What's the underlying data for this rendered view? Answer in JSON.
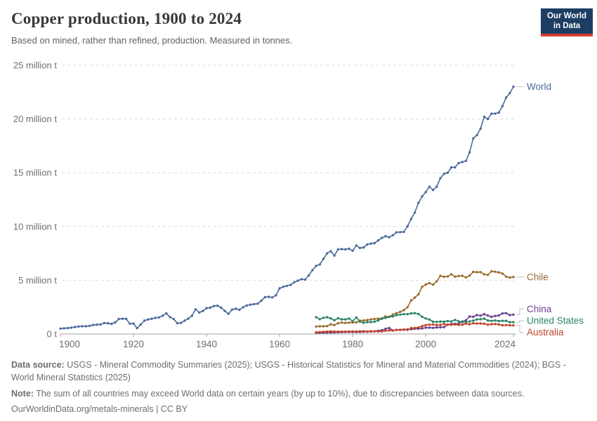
{
  "header": {
    "title": "Copper production, 1900 to 2024",
    "subtitle": "Based on mined, rather than refined, production. Measured in tonnes."
  },
  "logo": {
    "line1": "Our World",
    "line2": "in Data",
    "bg_color": "#1d3d63",
    "stripe_color": "#d53e32"
  },
  "footer": {
    "source_label": "Data source:",
    "source_text": " USGS - Mineral Commodity Summaries (2025); USGS - Historical Statistics for Mineral and Material Commodities (2024); BGS - World Mineral Statistics (2025)",
    "note_label": "Note:",
    "note_text": " The sum of all countries may exceed World data on certain years (by up to 10%), due to discrepancies between data sources.",
    "url_text": "OurWorldinData.org/metals-minerals | CC BY"
  },
  "chart_data": {
    "type": "line",
    "title": "Copper production, 1900 to 2024",
    "xlabel": "",
    "ylabel": "",
    "unit": "tonnes",
    "unit_values": "million tonnes",
    "grid": true,
    "legend_position": "right-end-labels",
    "xlim": [
      1900,
      2024
    ],
    "ylim_million_t": [
      0,
      25
    ],
    "x_ticks": [
      1900,
      1920,
      1940,
      1960,
      1980,
      2000,
      2024
    ],
    "y_ticks_million_t": [
      0,
      5,
      10,
      15,
      20,
      25
    ],
    "y_tick_labels": [
      "0 t",
      "5 million t",
      "10 million t",
      "15 million t",
      "20 million t",
      "25 million t"
    ],
    "axis_color": "#a3a3a3",
    "grid_color": "#dcdcdc",
    "tick_text_color": "#6e6e6e",
    "series": [
      {
        "name": "World",
        "color": "#4C6A9C",
        "start_year": 1900,
        "label_dy": 0,
        "values_million_t": [
          0.5,
          0.53,
          0.55,
          0.59,
          0.65,
          0.69,
          0.72,
          0.72,
          0.76,
          0.84,
          0.87,
          0.89,
          1.02,
          1.0,
          0.94,
          1.08,
          1.4,
          1.42,
          1.41,
          0.96,
          0.97,
          0.54,
          0.88,
          1.24,
          1.35,
          1.42,
          1.5,
          1.55,
          1.7,
          1.92,
          1.57,
          1.39,
          1.0,
          1.03,
          1.25,
          1.43,
          1.7,
          2.3,
          2.0,
          2.15,
          2.4,
          2.45,
          2.6,
          2.63,
          2.45,
          2.15,
          1.88,
          2.27,
          2.35,
          2.25,
          2.49,
          2.65,
          2.73,
          2.78,
          2.82,
          3.1,
          3.43,
          3.46,
          3.4,
          3.6,
          4.24,
          4.39,
          4.48,
          4.57,
          4.81,
          4.96,
          5.1,
          5.05,
          5.46,
          5.94,
          6.34,
          6.47,
          7.0,
          7.5,
          7.7,
          7.3,
          7.87,
          7.9,
          7.87,
          7.93,
          7.74,
          8.23,
          8.0,
          8.05,
          8.33,
          8.41,
          8.45,
          8.71,
          8.94,
          9.1,
          9.0,
          9.19,
          9.46,
          9.48,
          9.5,
          10.02,
          10.7,
          11.3,
          12.2,
          12.8,
          13.2,
          13.7,
          13.4,
          13.7,
          14.5,
          14.9,
          15.0,
          15.5,
          15.5,
          15.9,
          16.0,
          16.1,
          16.9,
          18.2,
          18.5,
          19.1,
          20.2,
          20.0,
          20.5,
          20.5,
          20.6,
          21.2,
          22.0,
          22.4,
          23.0
        ]
      },
      {
        "name": "Chile",
        "color": "#9C6B2F",
        "start_year": 1970,
        "label_dy": 0,
        "values_million_t": [
          0.69,
          0.71,
          0.72,
          0.74,
          0.9,
          0.83,
          1.0,
          1.06,
          1.03,
          1.06,
          1.07,
          1.08,
          1.24,
          1.26,
          1.29,
          1.36,
          1.4,
          1.42,
          1.45,
          1.63,
          1.59,
          1.81,
          1.93,
          2.06,
          2.22,
          2.49,
          3.12,
          3.39,
          3.69,
          4.38,
          4.6,
          4.74,
          4.58,
          4.9,
          5.41,
          5.32,
          5.36,
          5.56,
          5.33,
          5.39,
          5.42,
          5.26,
          5.43,
          5.78,
          5.75,
          5.76,
          5.55,
          5.5,
          5.83,
          5.79,
          5.73,
          5.62,
          5.33,
          5.25,
          5.3
        ]
      },
      {
        "name": "China",
        "color": "#6D3E91",
        "start_year": 1970,
        "label_dy": -8,
        "values_million_t": [
          0.1,
          0.11,
          0.12,
          0.13,
          0.14,
          0.15,
          0.16,
          0.17,
          0.18,
          0.19,
          0.18,
          0.18,
          0.19,
          0.2,
          0.21,
          0.22,
          0.25,
          0.3,
          0.35,
          0.48,
          0.56,
          0.33,
          0.37,
          0.38,
          0.4,
          0.44,
          0.44,
          0.49,
          0.49,
          0.52,
          0.59,
          0.59,
          0.57,
          0.61,
          0.62,
          0.64,
          0.87,
          0.93,
          0.95,
          0.96,
          1.16,
          1.27,
          1.63,
          1.6,
          1.76,
          1.71,
          1.85,
          1.71,
          1.59,
          1.68,
          1.72,
          1.91,
          1.94,
          1.76,
          1.8
        ]
      },
      {
        "name": "United States",
        "color": "#2C8465",
        "start_year": 1970,
        "label_dy": -2,
        "values_million_t": [
          1.56,
          1.38,
          1.51,
          1.56,
          1.45,
          1.28,
          1.46,
          1.36,
          1.36,
          1.44,
          1.18,
          1.54,
          1.15,
          1.04,
          1.1,
          1.11,
          1.15,
          1.26,
          1.42,
          1.5,
          1.59,
          1.63,
          1.76,
          1.8,
          1.85,
          1.85,
          1.92,
          1.94,
          1.86,
          1.6,
          1.44,
          1.34,
          1.14,
          1.12,
          1.16,
          1.14,
          1.2,
          1.17,
          1.31,
          1.18,
          1.11,
          1.11,
          1.17,
          1.25,
          1.36,
          1.38,
          1.43,
          1.26,
          1.22,
          1.26,
          1.2,
          1.23,
          1.22,
          1.1,
          1.1
        ]
      },
      {
        "name": "Australia",
        "color": "#C0452A",
        "start_year": 1970,
        "label_dy": 10,
        "values_million_t": [
          0.16,
          0.18,
          0.2,
          0.22,
          0.25,
          0.22,
          0.22,
          0.22,
          0.22,
          0.23,
          0.24,
          0.23,
          0.25,
          0.26,
          0.24,
          0.26,
          0.25,
          0.23,
          0.24,
          0.3,
          0.33,
          0.32,
          0.38,
          0.4,
          0.42,
          0.38,
          0.55,
          0.56,
          0.61,
          0.74,
          0.83,
          0.87,
          0.88,
          0.83,
          0.85,
          0.93,
          0.86,
          0.86,
          0.89,
          0.85,
          0.87,
          0.96,
          0.91,
          1.0,
          0.97,
          0.97,
          0.95,
          0.86,
          0.91,
          0.93,
          0.88,
          0.81,
          0.83,
          0.81,
          0.8
        ]
      }
    ]
  }
}
